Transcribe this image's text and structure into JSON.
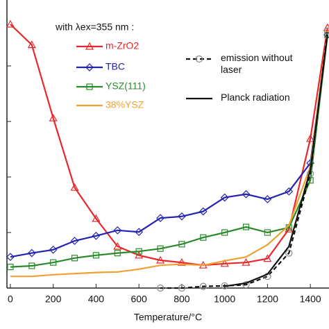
{
  "chart_data": {
    "type": "line",
    "legend_title": "with λex=355 nm :",
    "x_label": "Temperature/°C",
    "xlim": [
      -16,
      1487
    ],
    "xticks": [
      0,
      200,
      400,
      600,
      800,
      1000,
      1200,
      1400
    ],
    "ylim": [
      0,
      5
    ],
    "yticks": [
      1,
      2,
      3,
      4
    ],
    "series": [
      {
        "name": "m-ZrO2",
        "color": "#e8262b",
        "marker": "triangle",
        "dash": false,
        "x": [
          0,
          100,
          200,
          300,
          400,
          500,
          600,
          700,
          800,
          900,
          1000,
          1100,
          1200,
          1300,
          1400,
          1480
        ],
        "values": [
          4.75,
          4.38,
          3.06,
          1.81,
          1.25,
          0.75,
          0.59,
          0.5,
          0.46,
          0.41,
          0.44,
          0.46,
          0.53,
          1.06,
          2.69,
          4.69
        ]
      },
      {
        "name": "TBC",
        "color": "#2323b0",
        "marker": "diamond",
        "dash": false,
        "x": [
          0,
          100,
          200,
          300,
          400,
          500,
          600,
          700,
          800,
          900,
          1000,
          1100,
          1200,
          1300,
          1400,
          1480
        ],
        "values": [
          0.56,
          0.63,
          0.69,
          0.85,
          0.94,
          1.04,
          1.01,
          1.26,
          1.29,
          1.38,
          1.63,
          1.69,
          1.6,
          1.74,
          2.25,
          4.56
        ]
      },
      {
        "name": "YSZ(111)",
        "color": "#2a8a2a",
        "marker": "square",
        "dash": false,
        "x": [
          0,
          100,
          200,
          300,
          400,
          500,
          600,
          700,
          800,
          900,
          1000,
          1100,
          1200,
          1300,
          1400,
          1480
        ],
        "values": [
          0.38,
          0.4,
          0.46,
          0.54,
          0.59,
          0.63,
          0.66,
          0.71,
          0.79,
          0.91,
          1.0,
          1.1,
          1.0,
          1.09,
          1.94,
          4.56
        ]
      },
      {
        "name": "38%YSZ",
        "color": "#f0a030",
        "marker": "none",
        "dash": false,
        "x": [
          0,
          100,
          200,
          300,
          400,
          500,
          600,
          700,
          800,
          900,
          1000,
          1100,
          1200,
          1300,
          1400,
          1480
        ],
        "values": [
          0.21,
          0.21,
          0.24,
          0.26,
          0.28,
          0.29,
          0.34,
          0.41,
          0.43,
          0.41,
          0.49,
          0.56,
          0.78,
          1.13,
          2.19,
          4.63
        ]
      },
      {
        "name": "emission without laser",
        "color": "#111111",
        "marker": "circle",
        "dash": true,
        "x": [
          700,
          800,
          900,
          1000,
          1100,
          1200,
          1300,
          1400,
          1480
        ],
        "values": [
          0,
          0,
          0.03,
          0.04,
          0.06,
          0.21,
          0.63,
          2.06,
          4.63
        ]
      },
      {
        "name": "Planck radiation",
        "color": "#111111",
        "marker": "none",
        "dash": false,
        "x": [
          1000,
          1100,
          1200,
          1300,
          1400,
          1480
        ],
        "values": [
          0.03,
          0.09,
          0.25,
          0.75,
          2.13,
          4.56
        ]
      }
    ]
  }
}
